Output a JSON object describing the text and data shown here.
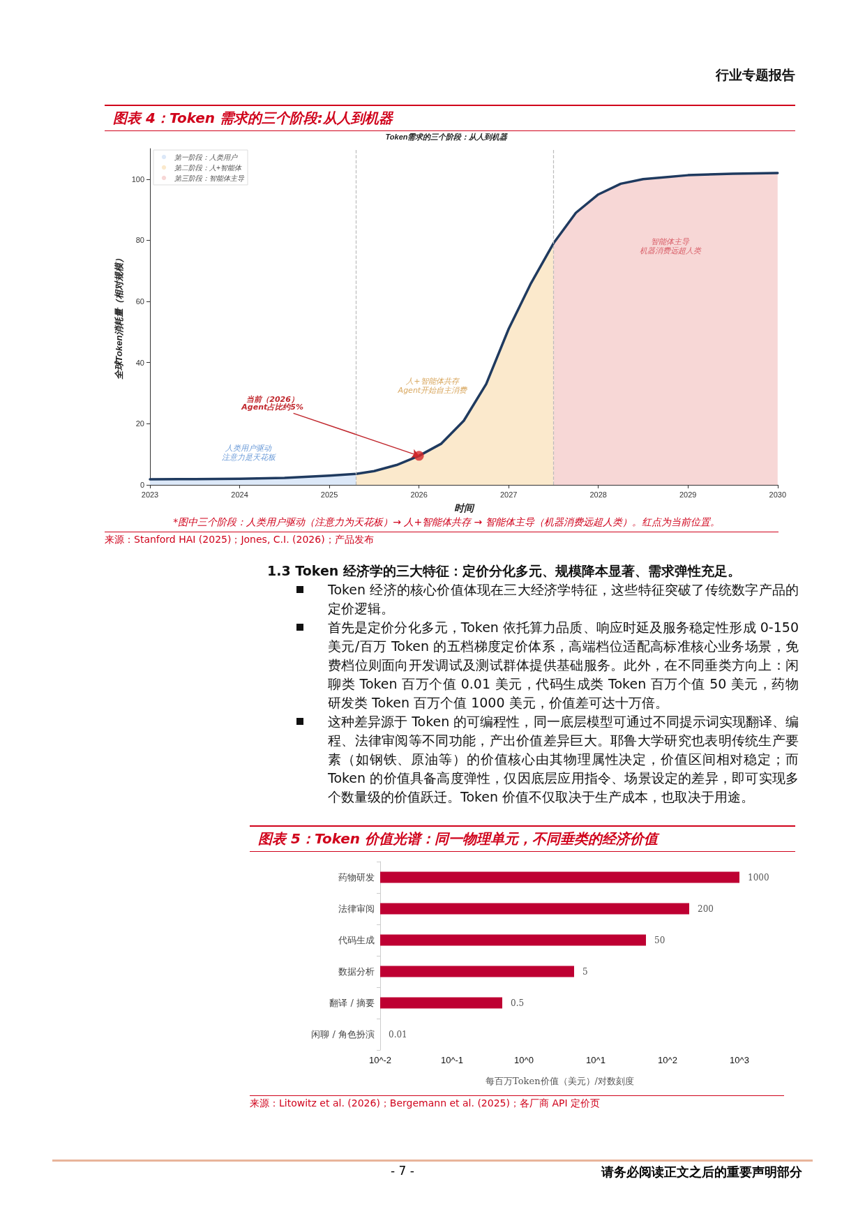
{
  "chart_data": [
    {
      "type": "area",
      "title": "图表 4：Token 需求的三个阶段:从人到机器",
      "subtitle": "Token需求的三个阶段：从人到机器",
      "xlabel": "时间",
      "ylabel": "全球Token消耗量（相对规模）",
      "xlim": [
        2023,
        2030
      ],
      "xticks": [
        2023,
        2024,
        2025,
        2026,
        2027,
        2028,
        2029,
        2030
      ],
      "ylim": [
        0,
        110
      ],
      "yticks": [
        0,
        20,
        40,
        60,
        80,
        100
      ],
      "grid": false,
      "legend": "top left",
      "series": [
        {
          "name": "第一阶段：人类用户",
          "color": "#dce8f8",
          "x": [
            2023,
            2023.5,
            2024,
            2024.5,
            2025,
            2025.3
          ],
          "values": [
            1.8,
            1.9,
            2,
            2.3,
            3,
            3.6
          ]
        },
        {
          "name": "第二阶段：人+智能体",
          "color": "#fbe9cc",
          "x": [
            2025.3,
            2025.5,
            2025.75,
            2026,
            2026.25,
            2026.5,
            2026.75,
            2027,
            2027.25,
            2027.5
          ],
          "values": [
            3.6,
            4.5,
            6.5,
            9.5,
            13.5,
            21,
            33,
            51,
            66,
            79
          ]
        },
        {
          "name": "第三阶段：智能体主导",
          "color": "#f7d7d6",
          "x": [
            2027.5,
            2027.75,
            2028,
            2028.25,
            2028.5,
            2029,
            2029.5,
            2030
          ],
          "values": [
            79,
            89,
            95,
            98.5,
            100,
            101.3,
            101.8,
            102
          ]
        },
        {
          "type": "line",
          "color": "#1f3a5f",
          "x": [
            2023,
            2023.5,
            2024,
            2024.5,
            2025,
            2025.3,
            2025.5,
            2025.75,
            2026,
            2026.25,
            2026.5,
            2026.75,
            2027,
            2027.25,
            2027.5,
            2027.75,
            2028,
            2028.25,
            2028.5,
            2029,
            2029.5,
            2030
          ],
          "values": [
            1.8,
            1.9,
            2,
            2.3,
            3,
            3.6,
            4.5,
            6.5,
            9.5,
            13.5,
            21,
            33,
            51,
            66,
            79,
            89,
            95,
            98.5,
            100,
            101.3,
            101.8,
            102
          ]
        },
        {
          "type": "scatter",
          "color": "#d62728",
          "x": [
            2026
          ],
          "values": [
            9.5
          ]
        }
      ],
      "ref_lines": [
        {
          "axis": "x",
          "value": 2025.3,
          "color": "#bbbbbb",
          "line_style": "dashed"
        },
        {
          "axis": "x",
          "value": 2027.5,
          "color": "#bbbbbb",
          "line_style": "dashed"
        }
      ],
      "annotations": [
        "行业专题报告",
        {
          "text": "当前（2026）\nAgent占比约5%",
          "x": 2026,
          "y": 9.5
        },
        "人类用户驱动",
        "注意力是天花板",
        "人+智能体共存",
        "Agent开始自主消费",
        "智能体主导",
        "机器消费远超人类",
        "*图中三个阶段：人类用户驱动（注意力为天花板）→ 人+智能体共存 → 智能体主导（机器消费远超人类）。红点为当前位置。",
        "来源：Stanford HAI (2025)；Jones, C.I. (2026)；产品发布"
      ]
    },
    {
      "type": "bar",
      "orientation": "horizontal",
      "log": "x",
      "title": "图表 5：Token 价值光谱：同一物理单元，不同垂类的经济价值",
      "xlabel": "每百万Token价值（美元）/对数刻度",
      "categories": [
        "药物研发",
        "法律审阅",
        "代码生成",
        "数据分析",
        "翻译 / 摘要",
        "闲聊 / 角色扮演"
      ],
      "values": [
        1000,
        200,
        50,
        5,
        0.5,
        0.01
      ],
      "color": "#be0032",
      "data_labels": true,
      "grid": false,
      "xlim": [
        0.01,
        1000
      ],
      "xticks": [
        {
          "value": 0.01,
          "label": "10^-2"
        },
        {
          "value": 0.1,
          "label": "10^-1"
        },
        {
          "value": 1,
          "label": "10^0"
        },
        {
          "value": 10,
          "label": "10^1"
        },
        {
          "value": 100,
          "label": "10^2"
        },
        {
          "value": 1000,
          "label": "10^3"
        }
      ],
      "annotations": [
        "1.3 Token 经济学的三大特征：定价分化多元、规模降本显著、需求弹性充足。",
        "Token 经济的核心价值体现在三大经济学特征，这些特征突破了传统数字产品的定价逻辑。",
        "首先是定价分化多元，Token 依托算力品质、响应时延及服务稳定性形成 0-150 美元/百万 Token 的五档梯度定价体系，高端档位适配高标准核心业务场景，免费档位则面向开发调试及测试群体提供基础服务。此外，在不同垂类方向上：闲聊类 Token 百万个值 0.01 美元，代码生成类 Token 百万个值 50 美元，药物研发类 Token 百万个值 1000 美元，价值差可达十万倍。",
        "这种差异源于 Token 的可编程性，同一底层模型可通过不同提示词实现翻译、编程、法律审阅等不同功能，产出价值差异巨大。耶鲁大学研究也表明传统生产要素（如钢铁、原油等）的价值核心由其物理属性决定，价值区间相对稳定；而 Token 的价值具备高度弹性，仅因底层应用指令、场景设定的差异，即可实现多个数量级的价值跃迁。Token 价值不仅取决于生产成本，也取决于用途。",
        "来源：Litowitz et al. (2026)；Bergemann et al. (2025)；各厂商 API 定价页",
        "- 7 -",
        "请务必阅读正文之后的重要声明部分"
      ]
    }
  ]
}
